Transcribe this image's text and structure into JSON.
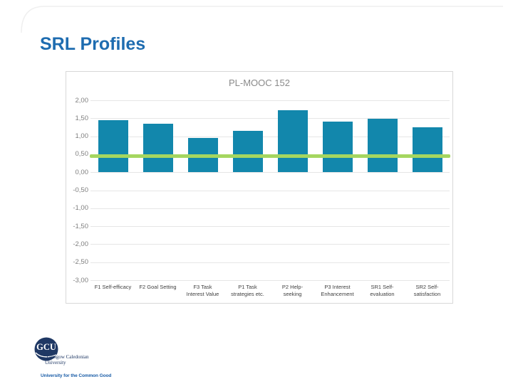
{
  "slide": {
    "title": "SRL Profiles"
  },
  "chart_data": {
    "type": "bar",
    "title": "PL-MOOC 152",
    "categories": [
      "F1 Self-efficacy",
      "F2 Goal Setting",
      "F3 Task\nInterest Value",
      "P1 Task\nstrategies etc.",
      "P2 Help-\nseeking",
      "P3 Interest\nEnhancement",
      "SR1 Self-\nevaluation",
      "SR2 Self-\nsatisfaction"
    ],
    "values": [
      1.44,
      1.34,
      0.95,
      1.15,
      1.72,
      1.4,
      1.48,
      1.25
    ],
    "ylim": [
      -3.0,
      2.0
    ],
    "ytick_step": 0.5,
    "ytick_labels": [
      "2,00",
      "1,50",
      "1,00",
      "0,50",
      "0,00",
      "-0,50",
      "-1,00",
      "-1,50",
      "-2,00",
      "-2,50",
      "-3,00"
    ],
    "reference_line_value": 0.45,
    "grid": true,
    "legend_position": "none",
    "xlabel": "",
    "ylabel": ""
  },
  "logo": {
    "acronym": "GCU",
    "name_line1": "Glasgow Caledonian",
    "name_line2": "University",
    "tagline": "University for the Common Good"
  },
  "colors": {
    "slide_title": "#1E6CB0",
    "bar": "#1287AC",
    "reference_line": "#A5D65F",
    "chart_title": "#8A8A8A",
    "axis_text": "#7F7F7F",
    "category_text": "#3F3F3F",
    "chart_border": "#D8D8D8",
    "gridline": "#E6E6E6",
    "logo_navy": "#1F3864",
    "tagline_blue": "#1B5EA8"
  }
}
